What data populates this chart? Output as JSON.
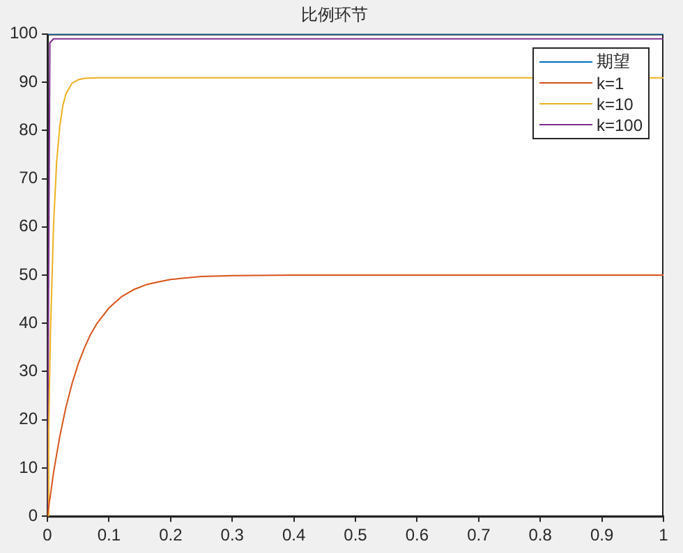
{
  "chart_data": {
    "type": "line",
    "title": "比例环节",
    "xlim": [
      0,
      1
    ],
    "xticks": [
      0,
      0.1,
      0.2,
      0.3,
      0.4,
      0.5,
      0.6,
      0.7,
      0.8,
      0.9,
      1
    ],
    "ylim": [
      0,
      100
    ],
    "yticks": [
      0,
      10,
      20,
      30,
      40,
      50,
      60,
      70,
      80,
      90,
      100
    ],
    "grid": false,
    "legend": "top right",
    "marker": "none",
    "line_style": "solid",
    "series": [
      {
        "name": "期望",
        "color": "#0072bd",
        "x": [
          0,
          1
        ],
        "values": [
          100,
          100
        ]
      },
      {
        "name": "k=1",
        "color": "#d95319",
        "x": [
          0,
          0.01,
          0.02,
          0.03,
          0.04,
          0.05,
          0.06,
          0.07,
          0.08,
          0.1,
          0.12,
          0.14,
          0.16,
          0.18,
          0.2,
          0.25,
          0.3,
          0.4,
          1
        ],
        "values": [
          0,
          9.1,
          16.5,
          22.6,
          27.5,
          31.6,
          34.9,
          37.7,
          39.9,
          43.2,
          45.5,
          47,
          48,
          48.6,
          49.1,
          49.7,
          49.9,
          50,
          50
        ]
      },
      {
        "name": "k=10",
        "color": "#edb120",
        "x": [
          0,
          0.002,
          0.005,
          0.01,
          0.015,
          0.02,
          0.025,
          0.03,
          0.04,
          0.05,
          0.06,
          0.08,
          1
        ],
        "values": [
          0,
          18,
          38.5,
          60.6,
          73.5,
          80.8,
          85.1,
          87.6,
          89.8,
          90.5,
          90.8,
          90.9,
          90.9
        ]
      },
      {
        "name": "k=100",
        "color": "#7e2f8e",
        "x": [
          0,
          0.004,
          0.01,
          1
        ],
        "values": [
          0,
          98.2,
          99,
          99
        ]
      }
    ]
  }
}
